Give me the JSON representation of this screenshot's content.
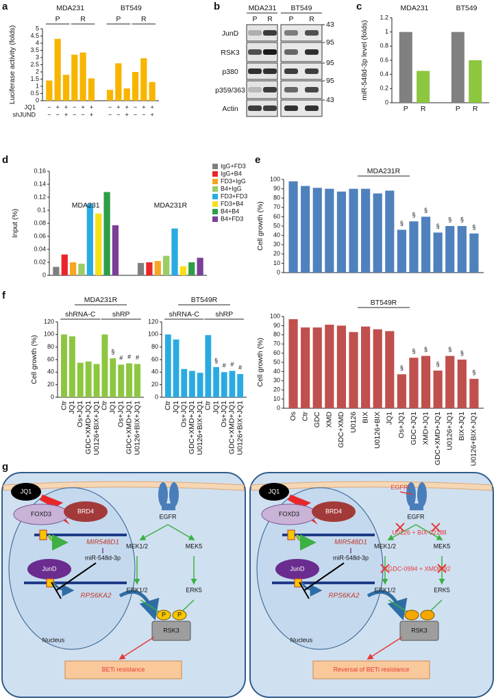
{
  "panels": [
    "a",
    "b",
    "c",
    "d",
    "e",
    "f",
    "g"
  ],
  "chart_data": [
    {
      "type": "bar",
      "ylabel": "Luciferase activity (folds)",
      "ylim": [
        0,
        5
      ],
      "yticks": [
        0,
        0.5,
        1,
        1.5,
        2,
        2.5,
        3,
        3.5,
        4,
        4.5,
        5
      ],
      "color": "#f7b500",
      "groups": [
        {
          "name": "MDA231",
          "subgroups": [
            "P",
            "R"
          ]
        },
        {
          "name": "BT549",
          "subgroups": [
            "P",
            "R"
          ]
        }
      ],
      "values": [
        1.4,
        4.3,
        1.8,
        3.2,
        3.35,
        1.55,
        0.75,
        2.6,
        0.85,
        2.0,
        2.95,
        1.3
      ],
      "conditions": [
        {
          "name": "JQ1",
          "signs": [
            "−",
            "+",
            "+",
            "−",
            "+",
            "+",
            "−",
            "+",
            "+",
            "−",
            "+",
            "+"
          ]
        },
        {
          "name": "shJUND",
          "signs": [
            "−",
            "−",
            "+",
            "−",
            "−",
            "+",
            "−",
            "−",
            "+",
            "−",
            "−",
            "+"
          ]
        }
      ]
    },
    {
      "type": "bar",
      "ylabel": "miR-548d-3p level (folds)",
      "ylim": [
        0,
        1.2
      ],
      "yticks": [
        0,
        0.2,
        0.4,
        0.6,
        0.8,
        1,
        1.2
      ],
      "groups": [
        "MDA231",
        "BT549"
      ],
      "categories": [
        "P",
        "R",
        "P",
        "R"
      ],
      "values": [
        1.0,
        0.45,
        1.0,
        0.6
      ],
      "colors": [
        "#808080",
        "#8dc63f",
        "#808080",
        "#8dc63f"
      ]
    },
    {
      "type": "bar",
      "ylabel": "Input (%)",
      "ylim": [
        0,
        0.16
      ],
      "yticks": [
        0,
        0.02,
        0.04,
        0.06,
        0.08,
        0.1,
        0.12,
        0.14,
        0.16
      ],
      "groups": [
        "MDA231",
        "MDA231R"
      ],
      "series": [
        {
          "name": "IgG+FD3",
          "color": "#7f7f7f",
          "values": [
            0.013,
            0.019
          ]
        },
        {
          "name": "IgG+B4",
          "color": "#e8262a",
          "values": [
            0.032,
            0.02
          ]
        },
        {
          "name": "FD3+IgG",
          "color": "#f5a623",
          "values": [
            0.02,
            0.022
          ]
        },
        {
          "name": "B4+IgG",
          "color": "#9ccc65",
          "values": [
            0.018,
            0.03
          ]
        },
        {
          "name": "FD3+FD3",
          "color": "#29abe2",
          "values": [
            0.11,
            0.072
          ]
        },
        {
          "name": "FD3+B4",
          "color": "#f7e017",
          "values": [
            0.095,
            0.014
          ]
        },
        {
          "name": "B4+B4",
          "color": "#2e9e48",
          "values": [
            0.128,
            0.02
          ]
        },
        {
          "name": "B4+FD3",
          "color": "#7b3f99",
          "values": [
            0.077,
            0.027
          ]
        }
      ]
    },
    {
      "type": "bar",
      "title": "MDA231R",
      "ylabel": "Cell growth (%)",
      "ylim": [
        0,
        100
      ],
      "yticks": [
        0,
        10,
        20,
        30,
        40,
        50,
        60,
        70,
        80,
        90,
        100
      ],
      "color": "#4f81bd",
      "values": [
        98,
        93,
        91,
        90,
        87,
        90,
        90,
        85,
        88,
        46,
        55,
        60,
        43,
        50,
        50,
        42
      ],
      "annotations": [
        null,
        null,
        null,
        null,
        null,
        null,
        null,
        null,
        null,
        "§",
        "§",
        "§",
        "§",
        "§",
        "§",
        "§"
      ]
    },
    {
      "type": "bar",
      "title": "BT549R",
      "ylabel": "Cell growth (%)",
      "ylim": [
        0,
        100
      ],
      "yticks": [
        0,
        10,
        20,
        30,
        40,
        50,
        60,
        70,
        80,
        90,
        100
      ],
      "color": "#c0504d",
      "categories": [
        "Os",
        "Ctr",
        "GDC",
        "XMD",
        "GDC+XMD",
        "U0126",
        "BIX",
        "U0126+BIX",
        "JQ1",
        "Os+JQ1",
        "GDC+JQ1",
        "XMD+JQ1",
        "GDC+XMD+JQ1",
        "U0126+JQ1",
        "BIX+JQ1",
        "U0126+BIX+JQ1"
      ],
      "values": [
        97,
        88,
        88,
        91,
        90,
        83,
        89,
        86,
        84,
        37,
        55,
        57,
        41,
        57,
        53,
        32
      ],
      "annotations": [
        null,
        null,
        null,
        null,
        null,
        null,
        null,
        null,
        null,
        "§",
        "§",
        "§",
        "§",
        "§",
        "§",
        "§"
      ]
    },
    {
      "type": "bar",
      "title": "MDA231R",
      "ylabel": "Cell growth (%)",
      "ylim": [
        0,
        120
      ],
      "yticks": [
        0,
        20,
        40,
        60,
        80,
        100,
        120
      ],
      "color": "#8dc63f",
      "groups": [
        "shRNA-C",
        "shRP"
      ],
      "categories": [
        "Ctr",
        "JQ1",
        "Os+JQ1",
        "GDC+XMD+JQ1",
        "U0126+BIX+JQ1",
        "Ctr",
        "JQ1",
        "Os+JQ1",
        "GDC+XMD+JQ1",
        "U0126+BIX+JQ1"
      ],
      "values": [
        100,
        97,
        55,
        57,
        53,
        100,
        62,
        52,
        54,
        53
      ],
      "annotations": [
        null,
        null,
        null,
        null,
        null,
        null,
        "§",
        "#",
        "#",
        "#"
      ]
    },
    {
      "type": "bar",
      "title": "BT549R",
      "ylim": [
        0,
        120
      ],
      "yticks": [
        0,
        20,
        40,
        60,
        80,
        100,
        120
      ],
      "color": "#29abe2",
      "groups": [
        "shRNA-C",
        "shRP"
      ],
      "categories": [
        "Ctr",
        "JQ1",
        "Os+JQ1",
        "GDC+XMD+JQ1",
        "U0126+BIX+JQ1",
        "Ctr",
        "JQ1",
        "Os+JQ1",
        "GDC+XMD+JQ1",
        "U0126+BIX+JQ1"
      ],
      "values": [
        100,
        92,
        45,
        42,
        39,
        99,
        48,
        40,
        42,
        37
      ],
      "annotations": [
        null,
        null,
        null,
        null,
        null,
        null,
        "§",
        "#",
        "#",
        "#"
      ]
    }
  ],
  "blot": {
    "cell_lines": [
      "MDA231",
      "BT549"
    ],
    "lanes": [
      "P",
      "R",
      "P",
      "R"
    ],
    "proteins": [
      "JunD",
      "RSK3",
      "p380",
      "p359/363",
      "Actin"
    ],
    "mw": [
      43,
      95,
      95,
      95,
      43
    ]
  },
  "diagram": {
    "cells": [
      {
        "jq1": "JQ1",
        "foxd3": "FOXD3",
        "brd4": "BRD4",
        "mir548d1": "MIR548D1",
        "mirna": "miR-548d-3p",
        "jund": "JunD",
        "rps6ka2": "RPS6KA2",
        "nucleus": "Nucleus",
        "egfr": "EGFR",
        "mek12": "MEK1/2",
        "mek5": "MEK5",
        "erk12": "ERK1/2",
        "erk5": "ERK5",
        "p1": "P",
        "p2": "P",
        "rsk3": "RSK3",
        "outcome": "BETi resistance"
      },
      {
        "jq1": "JQ1",
        "egfri": "EGFRi",
        "foxd3": "FOXD3",
        "brd4": "BRD4",
        "mir548d1": "MIR548D1",
        "mirna": "miR-548d-3p",
        "jund": "JunD",
        "rps6ka2": "RPS6KA2",
        "nucleus": "Nucleus",
        "egfr": "EGFR",
        "mek_inhibitors": "U0126 + BIX-02188",
        "mek12": "MEK1/2",
        "mek5": "MEK5",
        "erk_inhibitors": "GDC-0994 + XMD8-92",
        "erk12": "ERK1/2",
        "erk5": "ERK5",
        "rsk3": "RSK3",
        "outcome": "Reversal of BETi resistance"
      }
    ]
  }
}
